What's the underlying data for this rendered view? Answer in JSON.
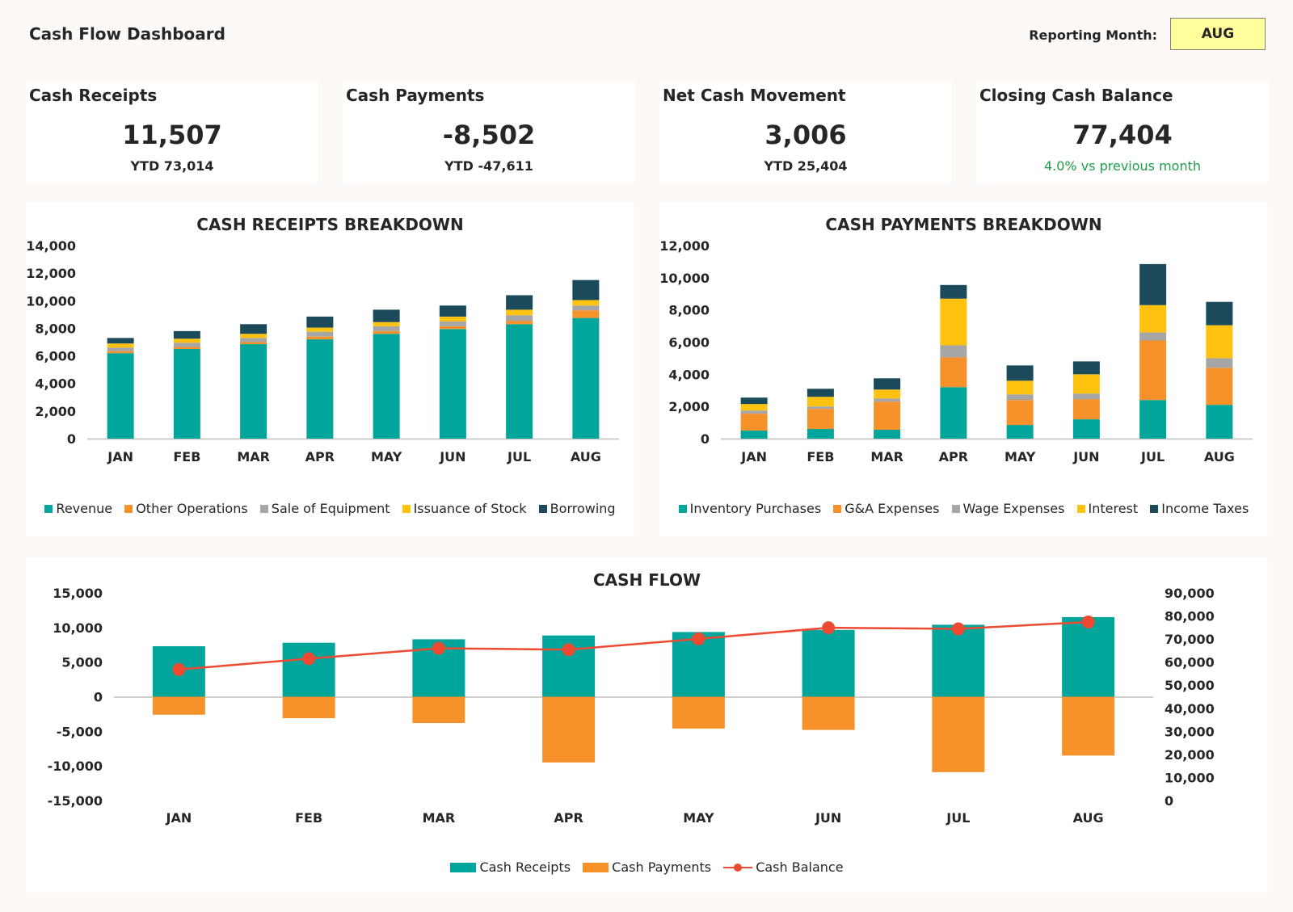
{
  "header": {
    "title": "Cash Flow Dashboard",
    "reporting_label": "Reporting Month:",
    "reporting_value": "AUG"
  },
  "kpis": [
    {
      "title": "Cash Receipts",
      "value": "11,507",
      "sub": "YTD 73,014"
    },
    {
      "title": "Cash Payments",
      "value": "-8,502",
      "sub": "YTD -47,611"
    },
    {
      "title": "Net Cash Movement",
      "value": "3,006",
      "sub": "YTD 25,404"
    },
    {
      "title": "Closing Cash Balance",
      "value": "77,404",
      "sub": "4.0% vs previous month"
    }
  ],
  "colors": {
    "teal": "#00a59b",
    "orange": "#f7922a",
    "gray": "#a6a6a6",
    "yellow": "#ffc20e",
    "navy": "#1b4a5a",
    "red": "#ee4a32",
    "green_text": "#1f9d4a",
    "highlight": "#ffff9c"
  },
  "chart_data": [
    {
      "type": "bar",
      "stacked": true,
      "title": "CASH RECEIPTS BREAKDOWN",
      "categories": [
        "JAN",
        "FEB",
        "MAR",
        "APR",
        "MAY",
        "JUN",
        "JUL",
        "AUG"
      ],
      "ylim": [
        0,
        14000
      ],
      "yticks": [
        0,
        2000,
        4000,
        6000,
        8000,
        10000,
        12000,
        14000
      ],
      "ytick_labels": [
        "0",
        "2,000",
        "4,000",
        "6,000",
        "8,000",
        "10,000",
        "12,000",
        "14,000"
      ],
      "series": [
        {
          "name": "Revenue",
          "color": "#00a59b",
          "values": [
            6200,
            6500,
            6850,
            7200,
            7600,
            7950,
            8300,
            8750
          ]
        },
        {
          "name": "Other Operations",
          "color": "#f7922a",
          "values": [
            150,
            150,
            150,
            200,
            200,
            200,
            250,
            550
          ]
        },
        {
          "name": "Sale of Equipment",
          "color": "#a6a6a6",
          "values": [
            250,
            300,
            300,
            350,
            350,
            350,
            400,
            350
          ]
        },
        {
          "name": "Issuance of Stock",
          "color": "#ffc20e",
          "values": [
            300,
            300,
            300,
            300,
            300,
            350,
            400,
            400
          ]
        },
        {
          "name": "Borrowing",
          "color": "#1b4a5a",
          "values": [
            400,
            550,
            700,
            800,
            900,
            800,
            1050,
            1450
          ]
        }
      ],
      "legend_position": "bottom",
      "grid": false
    },
    {
      "type": "bar",
      "stacked": true,
      "title": "CASH PAYMENTS BREAKDOWN",
      "categories": [
        "JAN",
        "FEB",
        "MAR",
        "APR",
        "MAY",
        "JUN",
        "JUL",
        "AUG"
      ],
      "ylim": [
        0,
        12000
      ],
      "yticks": [
        0,
        2000,
        4000,
        6000,
        8000,
        10000,
        12000
      ],
      "ytick_labels": [
        "0",
        "2,000",
        "4,000",
        "6,000",
        "8,000",
        "10,000",
        "12,000"
      ],
      "series": [
        {
          "name": "Inventory Purchases",
          "color": "#00a59b",
          "values": [
            500,
            600,
            550,
            3200,
            850,
            1200,
            2400,
            2100
          ]
        },
        {
          "name": "G&A Expenses",
          "color": "#f7922a",
          "values": [
            1050,
            1250,
            1750,
            1850,
            1550,
            1250,
            3700,
            2300
          ]
        },
        {
          "name": "Wage Expenses",
          "color": "#a6a6a6",
          "values": [
            200,
            150,
            200,
            750,
            350,
            350,
            500,
            600
          ]
        },
        {
          "name": "Interest",
          "color": "#ffc20e",
          "values": [
            400,
            600,
            550,
            2900,
            850,
            1200,
            1700,
            2050
          ]
        },
        {
          "name": "Income Taxes",
          "color": "#1b4a5a",
          "values": [
            400,
            500,
            700,
            850,
            950,
            800,
            2550,
            1450
          ]
        }
      ],
      "legend_position": "bottom",
      "grid": false
    },
    {
      "type": "bar",
      "title": "CASH FLOW",
      "categories": [
        "JAN",
        "FEB",
        "MAR",
        "APR",
        "MAY",
        "JUN",
        "JUL",
        "AUG"
      ],
      "ylim": [
        -15000,
        15000
      ],
      "yticks": [
        -15000,
        -10000,
        -5000,
        0,
        5000,
        10000,
        15000
      ],
      "ytick_labels": [
        "-15,000",
        "-10,000",
        "-5,000",
        "0",
        "5,000",
        "10,000",
        "15,000"
      ],
      "y2lim": [
        0,
        90000
      ],
      "y2ticks": [
        0,
        10000,
        20000,
        30000,
        40000,
        50000,
        60000,
        70000,
        80000,
        90000
      ],
      "y2tick_labels": [
        "0",
        "10,000",
        "20,000",
        "30,000",
        "40,000",
        "50,000",
        "60,000",
        "70,000",
        "80,000",
        "90,000"
      ],
      "series": [
        {
          "name": "Cash Receipts",
          "type": "bar",
          "axis": "left",
          "color": "#00a59b",
          "values": [
            7300,
            7800,
            8300,
            8850,
            9350,
            9650,
            10400,
            11507
          ]
        },
        {
          "name": "Cash Payments",
          "type": "bar",
          "axis": "left",
          "color": "#f7922a",
          "values": [
            -2600,
            -3100,
            -3800,
            -9500,
            -4600,
            -4800,
            -10900,
            -8502
          ]
        },
        {
          "name": "Cash Balance",
          "type": "line",
          "axis": "right",
          "color": "#ee4a32",
          "values": [
            56800,
            61500,
            66000,
            65400,
            70100,
            74900,
            74400,
            77404
          ]
        }
      ],
      "legend_position": "bottom",
      "grid": false
    }
  ]
}
